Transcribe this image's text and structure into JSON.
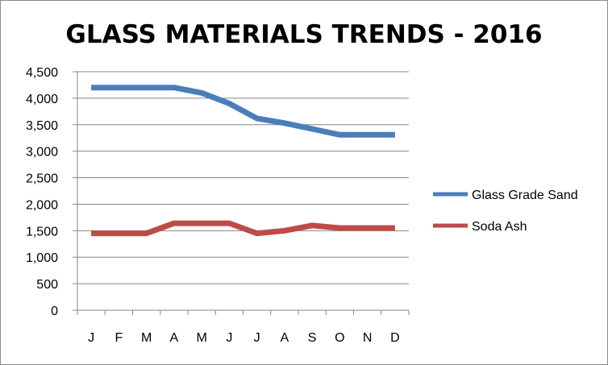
{
  "chart_data": {
    "type": "line",
    "title": "GLASS MATERIALS TRENDS - 2016",
    "xlabel": "",
    "ylabel": "",
    "categories": [
      "J",
      "F",
      "M",
      "A",
      "M",
      "J",
      "J",
      "A",
      "S",
      "O",
      "N",
      "D"
    ],
    "ylim": [
      0,
      4500
    ],
    "yticks": [
      0,
      500,
      1000,
      1500,
      2000,
      2500,
      3000,
      3500,
      4000,
      4500
    ],
    "ytick_labels": [
      "0",
      "500",
      "1,000",
      "1,500",
      "2,000",
      "2,500",
      "3,000",
      "3,500",
      "4,000",
      "4,500"
    ],
    "grid": true,
    "legend_position": "right",
    "series": [
      {
        "name": "Glass Grade Sand",
        "color": "#4a7ebb",
        "values": [
          4200,
          4200,
          4200,
          4200,
          4100,
          3900,
          3620,
          3530,
          3420,
          3310,
          3310,
          3310
        ]
      },
      {
        "name": "Soda Ash",
        "color": "#be4b48",
        "values": [
          1450,
          1450,
          1450,
          1640,
          1640,
          1640,
          1450,
          1500,
          1600,
          1550,
          1550,
          1550
        ]
      }
    ]
  }
}
